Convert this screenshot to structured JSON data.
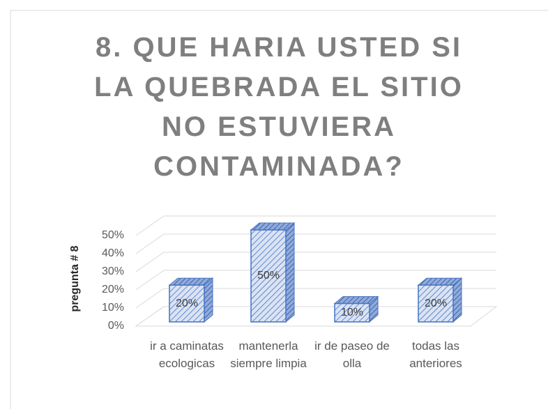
{
  "chart_data": {
    "type": "bar3d",
    "title": "8. QUE HARIA USTED SI LA QUEBRADA EL SITIO NO ESTUVIERA CONTAMINADA?",
    "y_label": "pregunta # 8",
    "categories": [
      "ir a caminatas ecologicas",
      "mantenerla siempre limpia",
      "ir de paseo de olla",
      "todas las anteriores"
    ],
    "values": [
      20,
      50,
      10,
      20
    ],
    "value_labels": [
      "20%",
      "50%",
      "10%",
      "20%"
    ],
    "color": "#4472c4",
    "ylim": [
      0,
      50
    ],
    "yticks": [
      {
        "value": 0,
        "label": "0%"
      },
      {
        "value": 10,
        "label": "10%"
      },
      {
        "value": 20,
        "label": "20%"
      },
      {
        "value": 30,
        "label": "30%"
      },
      {
        "value": 40,
        "label": "40%"
      },
      {
        "value": 50,
        "label": "50%"
      }
    ],
    "grid": true
  }
}
